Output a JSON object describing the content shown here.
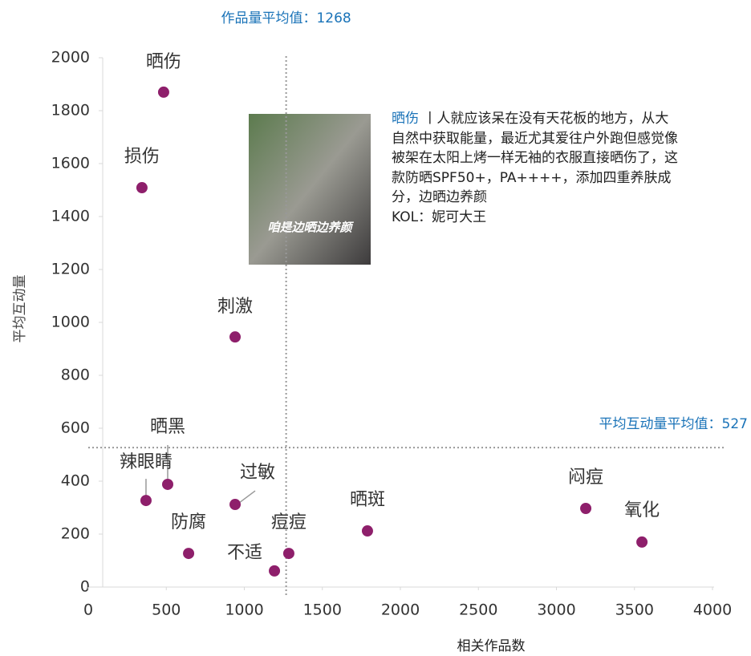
{
  "chart_data": {
    "type": "scatter",
    "x_label": "相关作品数",
    "y_label": "平均互动量",
    "xlim": [
      0,
      4000
    ],
    "ylim": [
      0,
      2000
    ],
    "xticks": [
      0,
      500,
      1000,
      1500,
      2000,
      2500,
      3000,
      3500,
      4000
    ],
    "yticks": [
      0,
      200,
      400,
      600,
      800,
      1000,
      1200,
      1400,
      1600,
      1800,
      2000
    ],
    "color": "#8e1f6b",
    "point_labels": [
      "晒伤",
      "损伤",
      "刺激",
      "晒黑",
      "辣眼睛",
      "过敏",
      "防腐",
      "不适",
      "痘痘",
      "晒斑",
      "闷痘",
      "氧化"
    ],
    "x": [
      483,
      344,
      941,
      509,
      370,
      941,
      643,
      1193,
      1285,
      1789,
      3188,
      3548
    ],
    "values": [
      1870,
      1509,
      945,
      388,
      327,
      312,
      127,
      61,
      127,
      212,
      297,
      170
    ],
    "reference_lines": [
      {
        "axis": "x",
        "value": 1268,
        "label": "作品量平均值：1268"
      },
      {
        "axis": "y",
        "value": 527,
        "label": "平均互动量平均值：527"
      }
    ],
    "annotation": {
      "title": "晒伤",
      "text": "丨人就应该呆在没有天花板的地方，从大自然中获取能量，最近尤其爱往户外跑但感觉像被架在太阳上烤一样无袖的衣服直接晒伤了，这款防晒SPF50+，PA++++，添加四重养肤成分，边晒边养颜",
      "author": "KOL：妮可大王",
      "image_caption": "咱是边晒边养颜"
    }
  }
}
